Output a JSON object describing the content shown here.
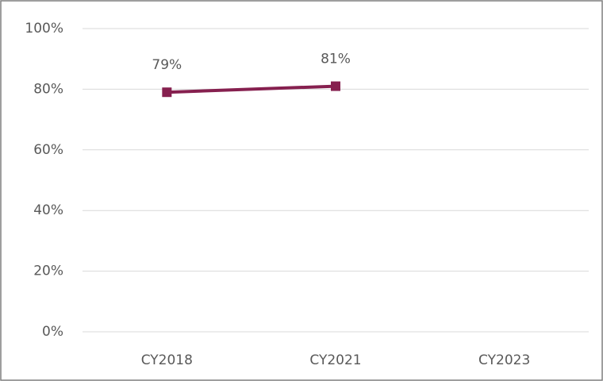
{
  "chart_data": {
    "type": "line",
    "categories": [
      "CY2018",
      "CY2021",
      "CY2023"
    ],
    "series": [
      {
        "color": "#86204f",
        "values": [
          79,
          81,
          null
        ],
        "value_labels": [
          "79%",
          "81%",
          null
        ]
      }
    ],
    "ylim": [
      0,
      100
    ],
    "yticks": [
      {
        "value": 0,
        "label": "0%"
      },
      {
        "value": 20,
        "label": "20%"
      },
      {
        "value": 40,
        "label": "40%"
      },
      {
        "value": 60,
        "label": "60%"
      },
      {
        "value": 80,
        "label": "80%"
      },
      {
        "value": 100,
        "label": "100%"
      }
    ],
    "grid": true
  }
}
